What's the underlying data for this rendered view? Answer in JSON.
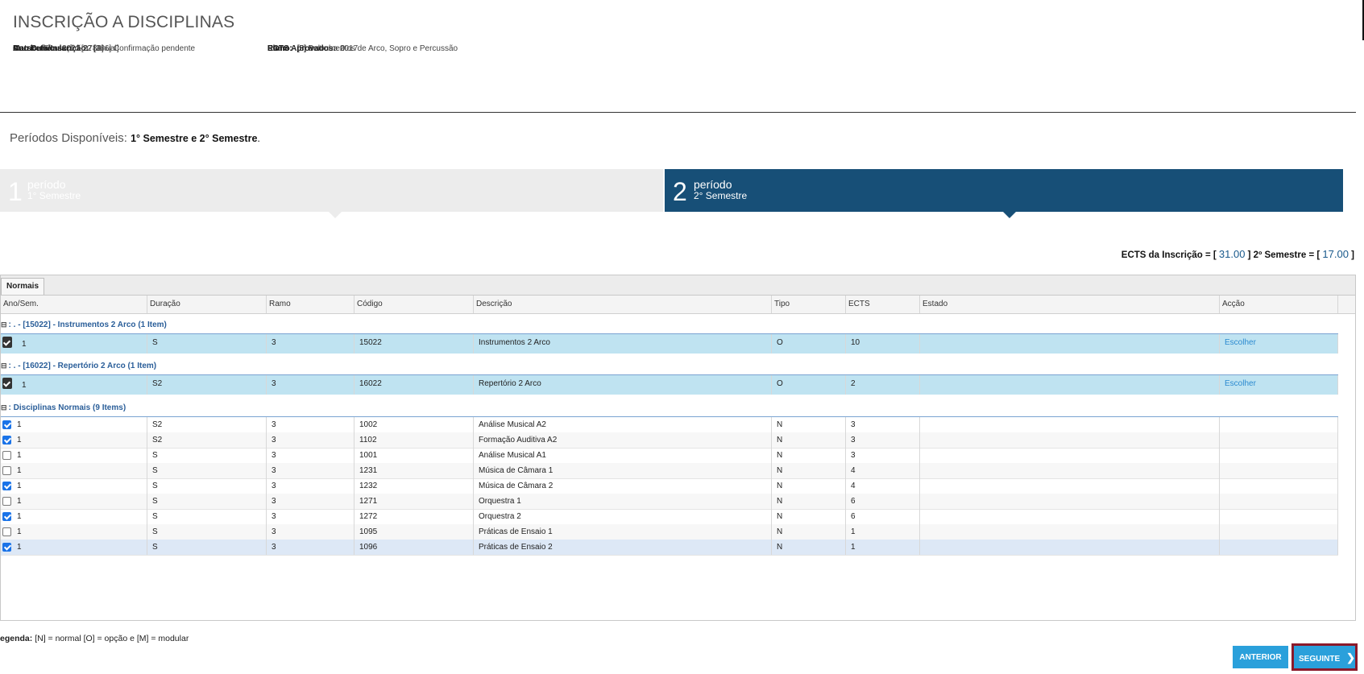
{
  "header": {
    "title": "INSCRIÇÃO A DISCIPLINAS",
    "left": [
      {
        "label": "Ano Letivo:",
        "value": "2021-22 [Anual]"
      },
      {
        "label": "Matrícula/Inscrição:",
        "value": "[366] Confirmação pendente"
      },
      {
        "label": "Curso:",
        "value": "Execução [9782]"
      },
      {
        "label": "Ano Curricular:",
        "value": "1"
      }
    ],
    "right": [
      {
        "label": "Plano:",
        "value": "[5] Bolonha 2017"
      },
      {
        "label": "Ramo:",
        "value": "[3] Instrumentos de Arco, Sopro e Percussão"
      },
      {
        "label": "ECTS Aprovados:",
        "value": "0"
      }
    ]
  },
  "periods": {
    "label": "Períodos Disponíveis:",
    "value": "1° Semestre e 2° Semestre",
    "dot": "."
  },
  "steps": [
    {
      "num": "1",
      "label": "período",
      "sub": "1° Semestre"
    },
    {
      "num": "2",
      "label": "período",
      "sub": "2° Semestre"
    }
  ],
  "ects": {
    "prefix": "ECTS da Inscrição = [",
    "total": "31.00",
    "mid": "] 2º Semestre = [",
    "semester": "17.00",
    "suffix": "]"
  },
  "grid": {
    "tab": "Normais",
    "columns": [
      "Ano/Sem.",
      "Duração",
      "Ramo",
      "Código",
      "Descrição",
      "Tipo",
      "ECTS",
      "Estado",
      "Acção"
    ],
    "groups": [
      {
        "toggle": "⊟",
        "title": ": . - [15022] - Instrumentos 2 Arco (1 Item)"
      },
      {
        "toggle": "⊟",
        "title": ": . - [16022] - Repertório 2 Arco (1 Item)"
      },
      {
        "toggle": "⊟",
        "title": ": Disciplinas Normais (9 Items)"
      }
    ],
    "option_rows": [
      {
        "ano": "1",
        "duracao": "S",
        "ramo": "3",
        "codigo": "15022",
        "descricao": "Instrumentos 2 Arco",
        "tipo": "O",
        "ects": "10",
        "estado": "",
        "accao": "Escolher"
      },
      {
        "ano": "1",
        "duracao": "S2",
        "ramo": "3",
        "codigo": "16022",
        "descricao": "Repertório 2 Arco",
        "tipo": "O",
        "ects": "2",
        "estado": "",
        "accao": "Escolher"
      }
    ],
    "normal_rows": [
      {
        "checked": true,
        "ano": "1",
        "duracao": "S2",
        "ramo": "3",
        "codigo": "1002",
        "descricao": "Análise Musical A2",
        "tipo": "N",
        "ects": "3"
      },
      {
        "checked": true,
        "ano": "1",
        "duracao": "S2",
        "ramo": "3",
        "codigo": "1102",
        "descricao": "Formação Auditiva A2",
        "tipo": "N",
        "ects": "3"
      },
      {
        "checked": false,
        "ano": "1",
        "duracao": "S",
        "ramo": "3",
        "codigo": "1001",
        "descricao": "Análise Musical A1",
        "tipo": "N",
        "ects": "3"
      },
      {
        "checked": false,
        "ano": "1",
        "duracao": "S",
        "ramo": "3",
        "codigo": "1231",
        "descricao": "Música de Câmara 1",
        "tipo": "N",
        "ects": "4"
      },
      {
        "checked": true,
        "ano": "1",
        "duracao": "S",
        "ramo": "3",
        "codigo": "1232",
        "descricao": "Música de Câmara 2",
        "tipo": "N",
        "ects": "4"
      },
      {
        "checked": false,
        "ano": "1",
        "duracao": "S",
        "ramo": "3",
        "codigo": "1271",
        "descricao": "Orquestra 1",
        "tipo": "N",
        "ects": "6"
      },
      {
        "checked": true,
        "ano": "1",
        "duracao": "S",
        "ramo": "3",
        "codigo": "1272",
        "descricao": "Orquestra 2",
        "tipo": "N",
        "ects": "6"
      },
      {
        "checked": false,
        "ano": "1",
        "duracao": "S",
        "ramo": "3",
        "codigo": "1095",
        "descricao": "Práticas de Ensaio 1",
        "tipo": "N",
        "ects": "1"
      },
      {
        "checked": true,
        "ano": "1",
        "duracao": "S",
        "ramo": "3",
        "codigo": "1096",
        "descricao": "Práticas de Ensaio 2",
        "tipo": "N",
        "ects": "1"
      }
    ]
  },
  "legend": {
    "label": "egenda:",
    "text": "[N] = normal [O] = opção e [M] = modular"
  },
  "buttons": {
    "prev": "ANTERIOR",
    "next": "SEGUINTE",
    "next_chevron": "❯"
  }
}
